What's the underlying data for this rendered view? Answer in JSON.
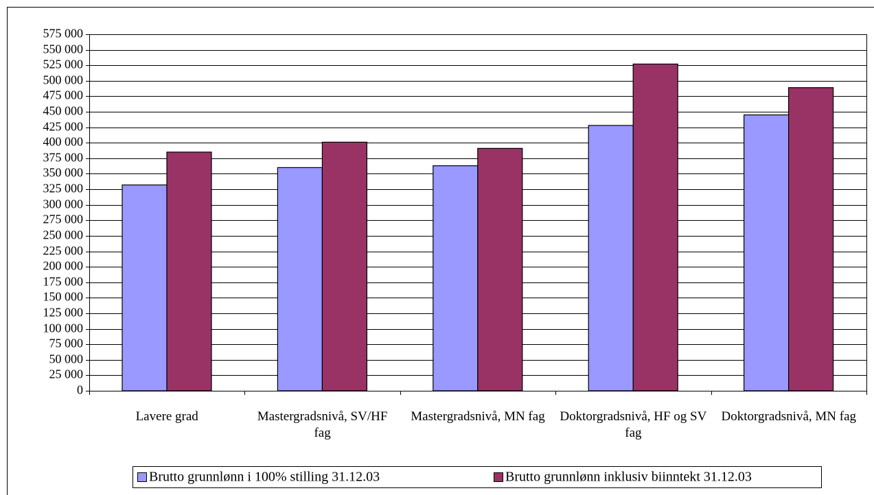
{
  "chart_data": {
    "type": "bar",
    "categories": [
      "Lavere grad",
      "Mastergradsnivå, SV/HF fag",
      "Mastergradsnivå, MN fag",
      "Doktorgradsnivå, HF og SV fag",
      "Doktorgradsnivå, MN fag"
    ],
    "series": [
      {
        "name": "Brutto grunnlønn i 100% stilling 31.12.03",
        "color": "#9999ff",
        "values": [
          332000,
          360000,
          363000,
          428000,
          445000
        ]
      },
      {
        "name": "Brutto grunnlønn inklusiv biinntekt 31.12.03",
        "color": "#993366",
        "values": [
          385000,
          401000,
          391000,
          527000,
          489000
        ]
      }
    ],
    "ylim": [
      0,
      575000
    ],
    "yticks": [
      0,
      {
        "value": 25000,
        "label": "25 000"
      },
      {
        "value": 50000,
        "label": "50 000"
      },
      {
        "value": 75000,
        "label": "75 000"
      },
      {
        "value": 100000,
        "label": "100 000"
      },
      {
        "value": 125000,
        "label": "125 000"
      },
      {
        "value": 150000,
        "label": "150 000"
      },
      {
        "value": 175000,
        "label": "175 000"
      },
      {
        "value": 200000,
        "label": "200 000"
      },
      {
        "value": 225000,
        "label": "225 000"
      },
      {
        "value": 250000,
        "label": "250 000"
      },
      {
        "value": 275000,
        "label": "275 000"
      },
      {
        "value": 300000,
        "label": "300 000"
      },
      {
        "value": 325000,
        "label": "325 000"
      },
      {
        "value": 350000,
        "label": "350 000"
      },
      {
        "value": 375000,
        "label": "375 000"
      },
      {
        "value": 400000,
        "label": "400 000"
      },
      {
        "value": 425000,
        "label": "425 000"
      },
      {
        "value": 450000,
        "label": "450 000"
      },
      {
        "value": 475000,
        "label": "475 000"
      },
      {
        "value": 500000,
        "label": "500 000"
      },
      {
        "value": 525000,
        "label": "525 000"
      },
      {
        "value": 550000,
        "label": "550 000"
      },
      {
        "value": 575000,
        "label": "575 000"
      }
    ],
    "grid": true,
    "legend": "bottom"
  }
}
